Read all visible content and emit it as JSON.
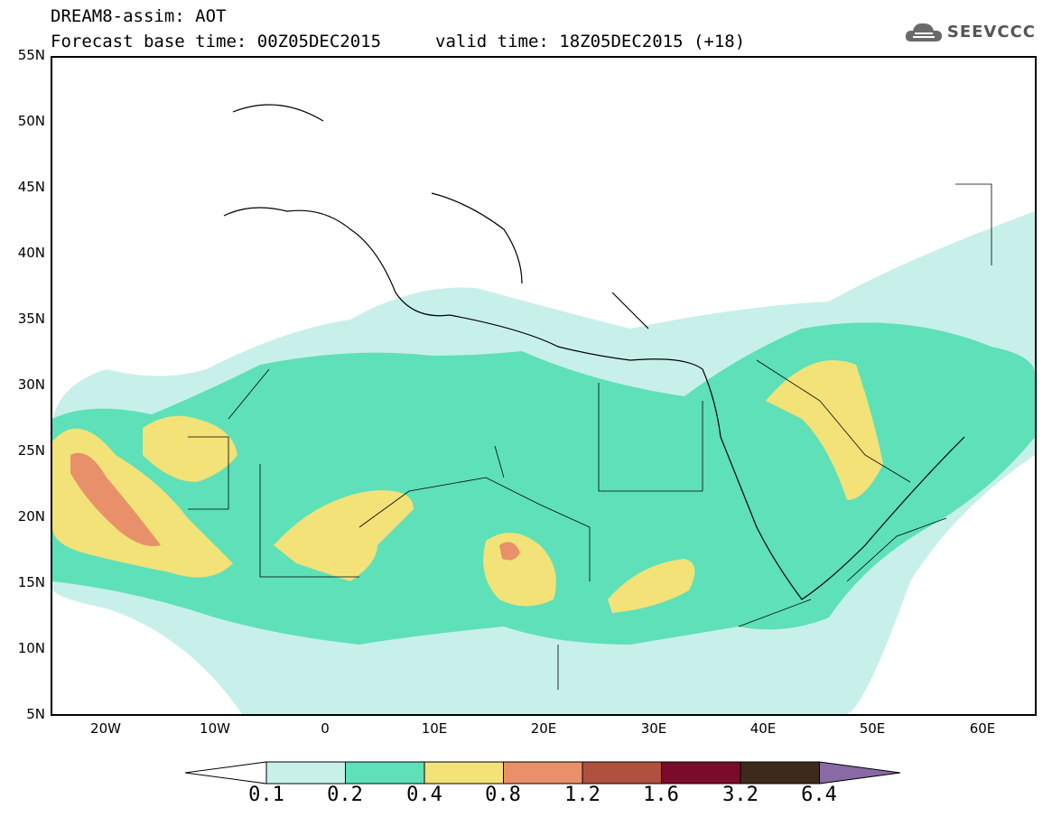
{
  "header": {
    "title": "DREAM8-assim: AOT",
    "base_time": "Forecast base time: 00Z05DEC2015",
    "valid_time": "valid time: 18Z05DEC2015 (+18)",
    "logo_text": "SEEVCCC"
  },
  "map": {
    "lat_labels": [
      "55N",
      "50N",
      "45N",
      "40N",
      "35N",
      "30N",
      "25N",
      "20N",
      "15N",
      "10N",
      "5N"
    ],
    "lon_labels": [
      "20W",
      "10W",
      "0",
      "10E",
      "20E",
      "30E",
      "40E",
      "50E",
      "60E"
    ]
  },
  "colorbar": {
    "colors": [
      "#c8f0ea",
      "#5ee0b8",
      "#f2e278",
      "#e8906a",
      "#b0503e",
      "#7a0c2a",
      "#3e2a1a",
      "#8a6aa6"
    ],
    "labels": [
      "0.1",
      "0.2",
      "0.4",
      "0.8",
      "1.2",
      "1.6",
      "3.2",
      "6.4"
    ]
  }
}
